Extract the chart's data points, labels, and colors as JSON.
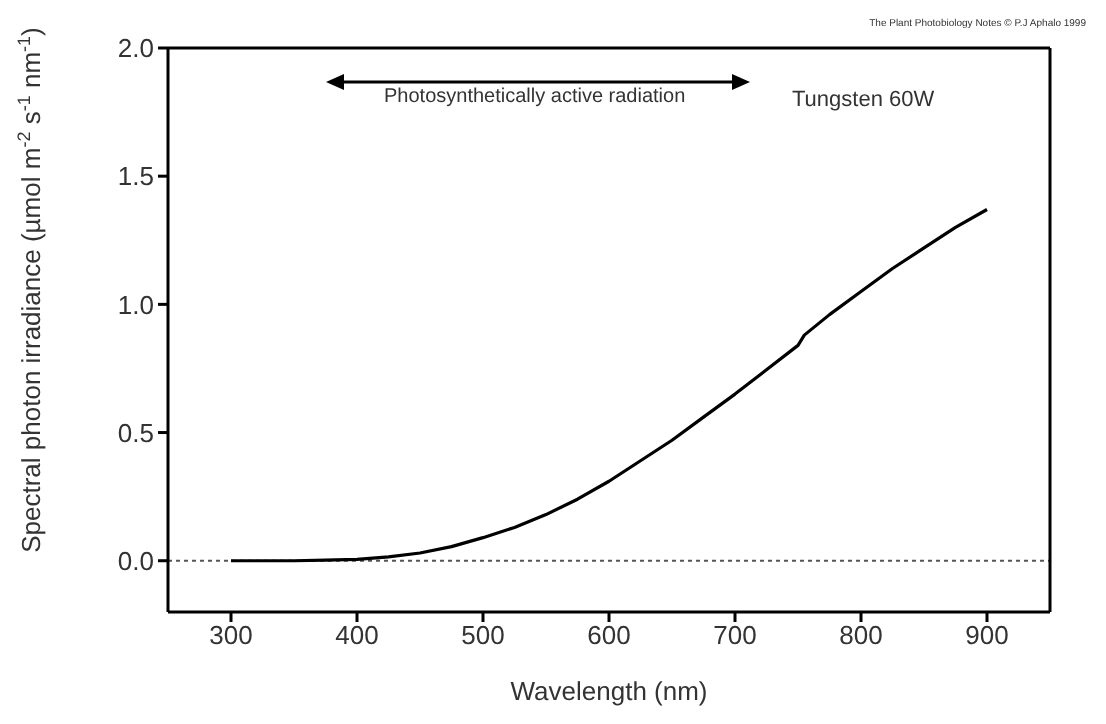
{
  "chart_data": {
    "type": "line",
    "xlabel": "Wavelength (nm)",
    "ylabel": "Spectral photon irradiance (µmol m$^{-2}$ s$^{-1}$ nm$^{-1}$)",
    "x": [
      300,
      350,
      375,
      400,
      425,
      450,
      475,
      500,
      525,
      550,
      575,
      600,
      625,
      650,
      675,
      700,
      725,
      750,
      755,
      775,
      800,
      825,
      850,
      875,
      900
    ],
    "series": [
      {
        "color": "#000000",
        "values": [
          0,
          0,
          0.002,
          0.005,
          0.015,
          0.03,
          0.055,
          0.09,
          0.13,
          0.18,
          0.24,
          0.31,
          0.39,
          0.47,
          0.56,
          0.65,
          0.745,
          0.84,
          0.88,
          0.96,
          1.05,
          1.14,
          1.22,
          1.3,
          1.37
        ]
      }
    ],
    "xlim": [
      250,
      950
    ],
    "xticks": [
      300,
      400,
      500,
      600,
      700,
      800,
      900
    ],
    "ylim": [
      -0.2,
      2.0
    ],
    "yticks": [
      {
        "value": 0,
        "label": "0.0"
      },
      0.5,
      {
        "value": 1,
        "label": "1.0"
      },
      1.5,
      {
        "value": 2,
        "label": "2.0"
      }
    ],
    "ref_lines": [
      {
        "axis": "y",
        "value": 0,
        "color": "#555555",
        "line_style": "dotted"
      }
    ],
    "annotations": [
      "Photosynthetically active radiation",
      "Tungsten 60W",
      "The Plant Photobiology Notes © P.J Aphalo 1999"
    ],
    "grid": false,
    "marker": "none",
    "line_style": "solid"
  }
}
